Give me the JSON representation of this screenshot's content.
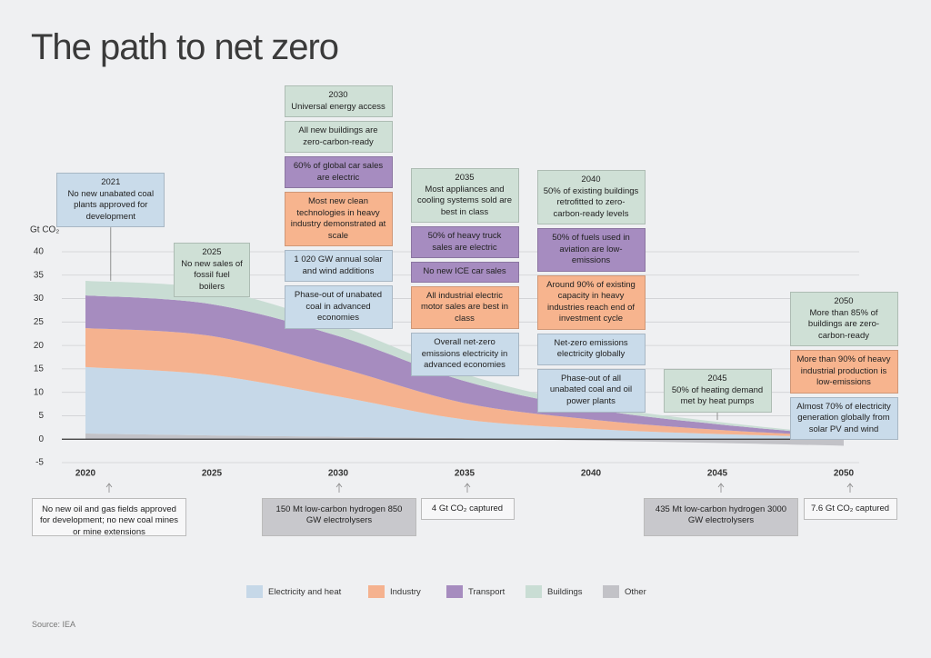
{
  "chart_data": {
    "type": "area",
    "title": "The path to net zero",
    "y_label": "Gt CO₂",
    "source": "Source: IEA",
    "x": [
      2020,
      2025,
      2030,
      2035,
      2040,
      2045,
      2050
    ],
    "xlim": [
      2020,
      2050
    ],
    "xticks": [
      2020,
      2025,
      2030,
      2035,
      2040,
      2045,
      2050
    ],
    "ylim": [
      -5,
      45
    ],
    "yticks": [
      -5,
      0,
      5,
      10,
      15,
      20,
      25,
      30,
      35,
      40
    ],
    "grid": true,
    "stacked": true,
    "series": [
      {
        "name": "Electricity and heat",
        "color": "#c6d8e8",
        "values": [
          14.2,
          12.9,
          8.6,
          4.0,
          2.2,
          1.1,
          0.4
        ]
      },
      {
        "name": "Industry",
        "color": "#f5b28f",
        "values": [
          8.3,
          8.3,
          6.2,
          3.5,
          2.0,
          0.9,
          0.2
        ]
      },
      {
        "name": "Transport",
        "color": "#a68cbf",
        "values": [
          7.0,
          6.8,
          6.7,
          4.7,
          2.3,
          1.2,
          0.2
        ]
      },
      {
        "name": "Buildings",
        "color": "#c9ddd4",
        "values": [
          3.1,
          3.2,
          2.3,
          1.5,
          0.9,
          0.5,
          0.1
        ]
      },
      {
        "name": "Other",
        "color": "#c2c2c7",
        "values": [
          1.2,
          0.8,
          0.5,
          0.2,
          -0.3,
          -0.8,
          -1.4
        ]
      }
    ],
    "annotations": [
      {
        "year": 2021,
        "items": [
          {
            "text": "No new unabated coal plants approved for development",
            "color": "#c9dbea"
          }
        ]
      },
      {
        "year": 2025,
        "items": [
          {
            "text": "No new sales of fossil fuel boilers",
            "color": "#cfe0d6"
          }
        ]
      },
      {
        "year": 2030,
        "items": [
          {
            "text": "Universal energy access",
            "color": "#cfe0d6"
          },
          {
            "text": "All new buildings are zero-carbon-ready",
            "color": "#cfe0d6"
          },
          {
            "text": "60% of global car sales are electric",
            "color": "#a68cc0"
          },
          {
            "text": "Most new clean technologies in heavy industry demonstrated at scale",
            "color": "#f7b48e"
          },
          {
            "text": "1 020 GW annual solar and wind additions",
            "color": "#c9dbea"
          },
          {
            "text": "Phase-out of unabated coal in advanced economies",
            "color": "#c9dbea"
          }
        ]
      },
      {
        "year": 2035,
        "items": [
          {
            "text": "Most appliances and cooling systems sold are best in class",
            "color": "#cfe0d6"
          },
          {
            "text": "50% of heavy truck sales are electric",
            "color": "#a68cc0"
          },
          {
            "text": "No new ICE car sales",
            "color": "#a68cc0"
          },
          {
            "text": "All industrial electric motor sales are best in class",
            "color": "#f7b48e"
          },
          {
            "text": "Overall net-zero emissions electricity in advanced economies",
            "color": "#c9dbea"
          }
        ]
      },
      {
        "year": 2040,
        "items": [
          {
            "text": "50% of existing buildings retrofitted to zero-carbon-ready levels",
            "color": "#cfe0d6"
          },
          {
            "text": "50% of fuels used in aviation are low-emissions",
            "color": "#a68cc0"
          },
          {
            "text": "Around 90% of existing capacity in heavy industries reach end of investment cycle",
            "color": "#f7b48e"
          },
          {
            "text": "Net-zero emissions electricity globally",
            "color": "#c9dbea"
          },
          {
            "text": "Phase-out of all unabated coal and oil power plants",
            "color": "#c9dbea"
          }
        ]
      },
      {
        "year": 2045,
        "items": [
          {
            "text": "50% of heating demand met by heat pumps",
            "color": "#cfe0d6"
          }
        ]
      },
      {
        "year": 2050,
        "items": [
          {
            "text": "More than 85% of buildings are zero-carbon-ready",
            "color": "#cfe0d6"
          },
          {
            "text": "More than 90% of heavy industrial production is low-emissions",
            "color": "#f7b48e"
          },
          {
            "text": "Almost 70% of electricity generation globally from solar PV and wind",
            "color": "#c9dbea"
          }
        ]
      }
    ],
    "bottom_notes": [
      {
        "text": "No new oil and gas fields approved for development; no new coal mines or mine extensions",
        "color": "#f7f7f8"
      },
      {
        "text": "150 Mt low-carbon hydrogen 850 GW electrolysers",
        "color": "#c8c8cc"
      },
      {
        "text": "4 Gt CO₂ captured",
        "color": "#f7f7f8"
      },
      {
        "text": "435 Mt low-carbon hydrogen 3000 GW electrolysers",
        "color": "#c8c8cc"
      },
      {
        "text": "7.6 Gt CO₂ captured",
        "color": "#f7f7f8"
      }
    ]
  }
}
